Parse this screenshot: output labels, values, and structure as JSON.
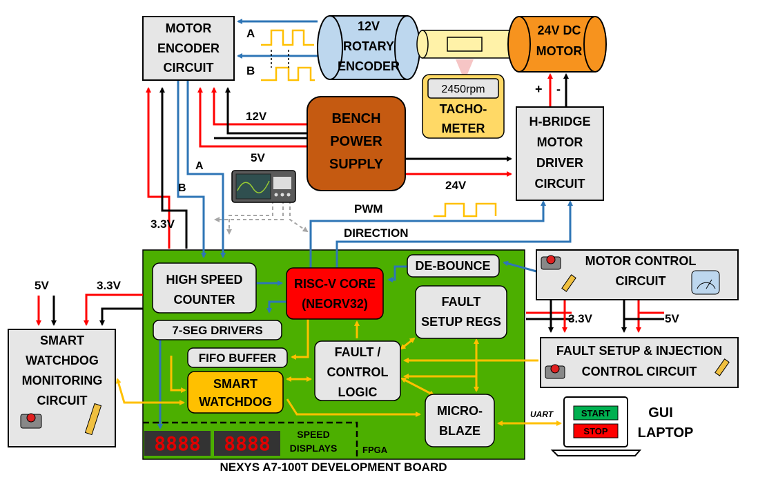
{
  "blocks": {
    "motor_encoder": [
      "MOTOR",
      "ENCODER",
      "CIRCUIT"
    ],
    "rotary_encoder": [
      "12V",
      "ROTARY",
      "ENCODER"
    ],
    "dc_motor": [
      "24V DC",
      "MOTOR"
    ],
    "tachometer": {
      "reading": "2450rpm",
      "lines": [
        "TACHO-",
        "METER"
      ]
    },
    "bench_power": [
      "BENCH",
      "POWER",
      "SUPPLY"
    ],
    "hbridge": [
      "H-BRIDGE",
      "MOTOR",
      "DRIVER",
      "CIRCUIT"
    ],
    "high_speed_counter": [
      "HIGH SPEED",
      "COUNTER"
    ],
    "riscv": [
      "RISC-V CORE",
      "(NEORV32)"
    ],
    "debounce": "DE-BOUNCE",
    "fault_setup_regs": [
      "FAULT",
      "SETUP REGS"
    ],
    "seven_seg": "7-SEG DRIVERS",
    "fifo": "FIFO BUFFER",
    "fault_control": [
      "FAULT /",
      "CONTROL",
      "LOGIC"
    ],
    "smart_watchdog": [
      "SMART",
      "WATCHDOG"
    ],
    "microblaze": [
      "MICRO-",
      "BLAZE"
    ],
    "motor_control": [
      "MOTOR CONTROL",
      "CIRCUIT"
    ],
    "fault_injection": [
      "FAULT SETUP & INJECTION",
      "CONTROL CIRCUIT"
    ],
    "watchdog_monitor": [
      "SMART",
      "WATCHDOG",
      "MONITORING",
      "CIRCUIT"
    ],
    "gui_laptop": {
      "label": [
        "GUI",
        "LAPTOP"
      ],
      "start": "START",
      "stop": "STOP"
    },
    "speed_displays": {
      "label": [
        "SPEED",
        "DISPLAYS"
      ],
      "digits": "8888"
    }
  },
  "labels": {
    "signal_a": "A",
    "signal_b": "B",
    "v12": "12V",
    "v5": "5V",
    "v24": "24V",
    "v33": "3.3V",
    "pwm": "PWM",
    "direction": "DIRECTION",
    "uart": "UART",
    "fpga": "FPGA",
    "board": "NEXYS A7-100T DEVELOPMENT BOARD",
    "plus": "+",
    "minus": "-"
  },
  "colors": {
    "board_green": "#4CAF00",
    "box_gray": "#E6E6E6",
    "riscv_red": "#FF0000",
    "watchdog_yellow": "#FFC000",
    "power_brown": "#C55A11",
    "motor_orange": "#F7931E",
    "encoder_blue": "#BDD7EE",
    "tacho_yellow": "#FFD966",
    "wire_red": "#FF0000",
    "wire_blue": "#2E75B6",
    "wire_yellow": "#FFC000",
    "wire_black": "#000000"
  }
}
